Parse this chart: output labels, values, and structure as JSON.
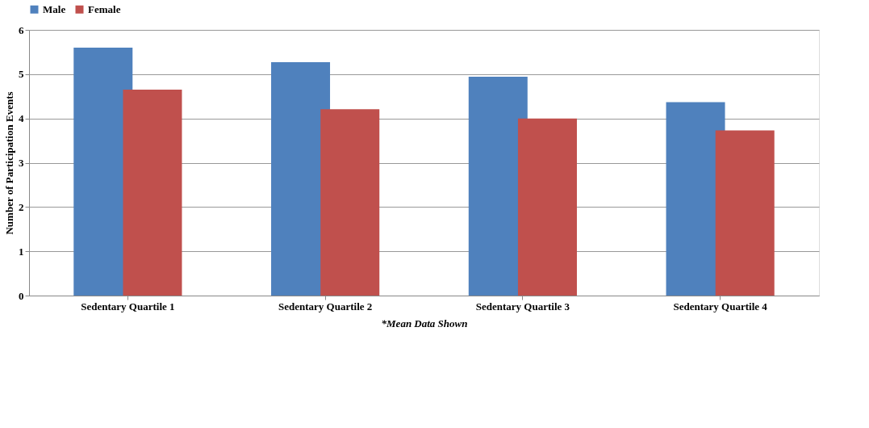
{
  "chart_data": {
    "type": "bar",
    "ylabel": "Number of Participation Events",
    "categories": [
      "Sedentary Quartile 1",
      "Sedentary Quartile 2",
      "Sedentary Quartile 3",
      "Sedentary Quartile 4"
    ],
    "series": [
      {
        "name": "Male",
        "color": "#4f81bd",
        "values": [
          5.6,
          5.27,
          4.94,
          4.37
        ]
      },
      {
        "name": "Female",
        "color": "#c0504d",
        "values": [
          4.65,
          4.21,
          4.0,
          3.73
        ]
      }
    ],
    "ylim": [
      0,
      6
    ],
    "yticks": [
      0,
      1,
      2,
      3,
      4,
      5,
      6
    ],
    "grid": "y",
    "legend": "top",
    "annotations": [
      "*Mean Data Shown"
    ]
  }
}
